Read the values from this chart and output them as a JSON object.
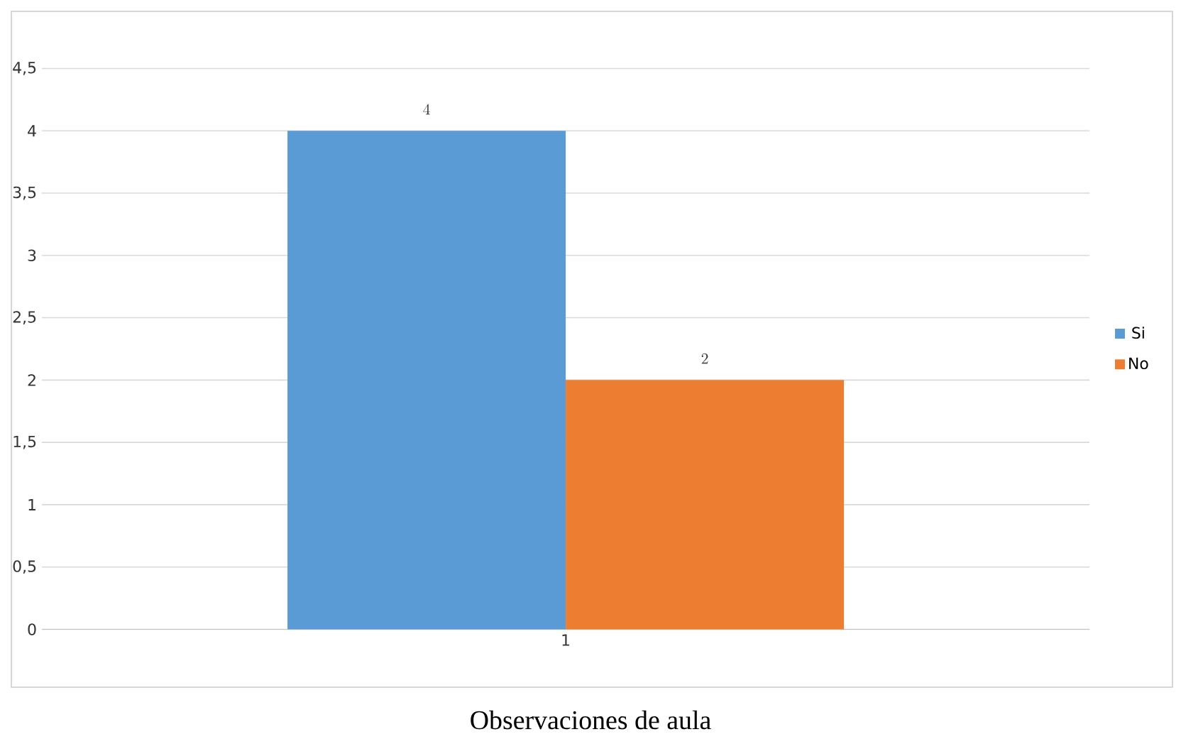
{
  "chart_data": {
    "type": "bar",
    "categories": [
      "1"
    ],
    "series": [
      {
        "name": "Si",
        "color": "#5b9bd5",
        "values": [
          4
        ]
      },
      {
        "name": "No",
        "color": "#ed7d31",
        "values": [
          2
        ]
      }
    ],
    "ylim": [
      0,
      4.5
    ],
    "yticks": [
      0,
      {
        "value": 0.5,
        "label": "0,5"
      },
      1,
      {
        "value": 1.5,
        "label": "1,5"
      },
      2,
      {
        "value": 2.5,
        "label": "2,5"
      },
      3,
      {
        "value": 3.5,
        "label": "3,5"
      },
      4,
      {
        "value": 4.5,
        "label": "4,5"
      }
    ],
    "grid": "y",
    "legend": "right",
    "data_labels": true,
    "annotations": [
      "Observaciones de aula"
    ]
  }
}
